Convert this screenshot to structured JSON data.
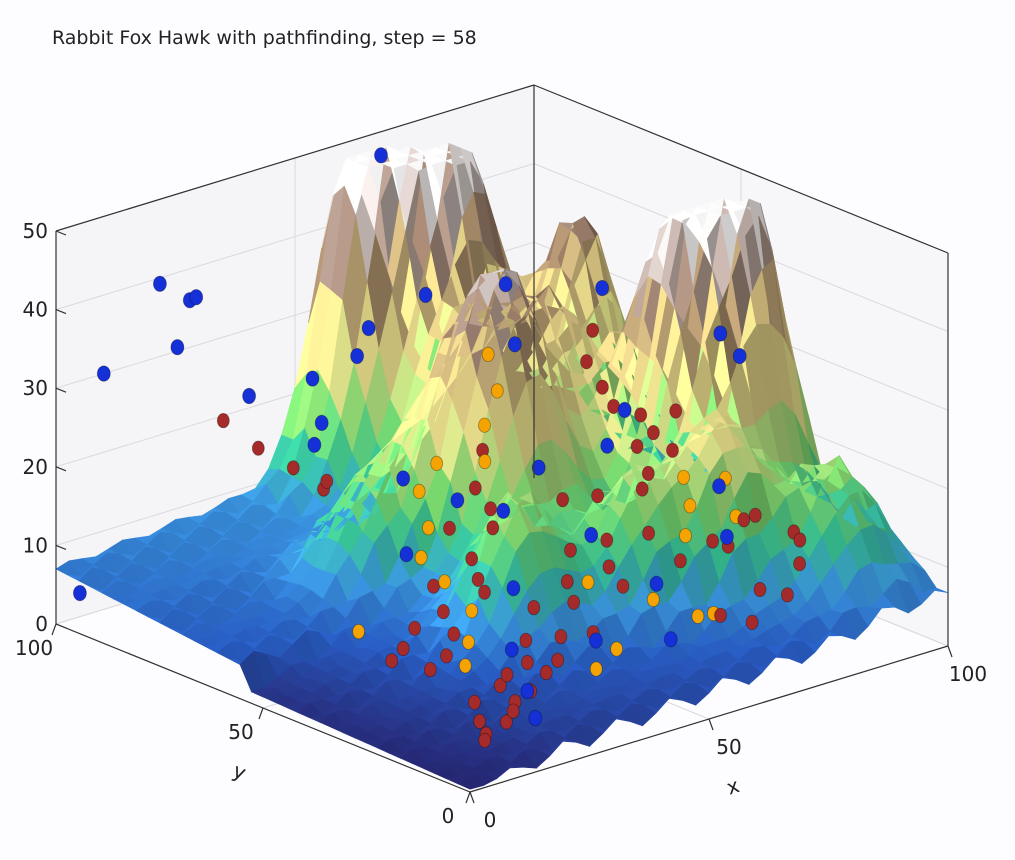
{
  "chart_data": {
    "type": "surface3d",
    "title": "Rabbit Fox Hawk with pathfinding, step = 58",
    "xlabel": "x",
    "ylabel": "y",
    "zlabel": "",
    "xlim": [
      0,
      100
    ],
    "ylim": [
      0,
      100
    ],
    "zlim": [
      0,
      50
    ],
    "xticks": [
      "0",
      "50",
      "100"
    ],
    "yticks": [
      "0",
      "50",
      "100"
    ],
    "zticks": [
      "0",
      "10",
      "20",
      "30",
      "40",
      "50"
    ],
    "colormap": "terrain",
    "grid": true,
    "surface_peaks": [
      {
        "x": 72,
        "y": 88,
        "z": 45
      },
      {
        "x": 60,
        "y": 95,
        "z": 45
      },
      {
        "x": 92,
        "y": 40,
        "z": 43
      },
      {
        "x": 80,
        "y": 45,
        "z": 34
      },
      {
        "x": 55,
        "y": 52,
        "z": 30
      },
      {
        "x": 88,
        "y": 75,
        "z": 31
      },
      {
        "x": 70,
        "y": 60,
        "z": 25
      },
      {
        "x": 62,
        "y": 72,
        "z": 22
      },
      {
        "x": 48,
        "y": 60,
        "z": 20
      },
      {
        "x": 40,
        "y": 35,
        "z": 18
      },
      {
        "x": 75,
        "y": 25,
        "z": 20
      },
      {
        "x": 60,
        "y": 30,
        "z": 16
      },
      {
        "x": 90,
        "y": 15,
        "z": 15
      },
      {
        "x": 35,
        "y": 65,
        "z": 12
      }
    ],
    "series": [
      {
        "name": "Rabbit",
        "color": "#a52a2a",
        "points": [
          [
            88,
            72,
            27
          ],
          [
            85,
            70,
            24
          ],
          [
            84,
            65,
            22
          ],
          [
            82,
            60,
            21
          ],
          [
            86,
            55,
            18
          ],
          [
            80,
            52,
            18
          ],
          [
            78,
            47,
            16
          ],
          [
            75,
            45,
            15
          ],
          [
            70,
            50,
            14
          ],
          [
            67,
            55,
            13
          ],
          [
            72,
            40,
            11
          ],
          [
            65,
            42,
            11
          ],
          [
            60,
            45,
            10
          ],
          [
            62,
            38,
            9
          ],
          [
            55,
            40,
            8
          ],
          [
            58,
            30,
            9
          ],
          [
            52,
            35,
            7
          ],
          [
            48,
            40,
            6
          ],
          [
            50,
            28,
            5
          ],
          [
            45,
            30,
            5
          ],
          [
            42,
            35,
            4
          ],
          [
            40,
            25,
            4
          ],
          [
            38,
            30,
            3
          ],
          [
            35,
            22,
            4
          ],
          [
            32,
            28,
            3
          ],
          [
            30,
            20,
            3
          ],
          [
            28,
            25,
            3
          ],
          [
            25,
            18,
            3
          ],
          [
            22,
            15,
            3
          ],
          [
            20,
            22,
            3
          ],
          [
            18,
            12,
            3
          ],
          [
            15,
            15,
            3
          ],
          [
            12,
            10,
            3
          ],
          [
            10,
            8,
            3
          ],
          [
            65,
            72,
            16
          ],
          [
            60,
            68,
            13
          ],
          [
            58,
            62,
            12
          ],
          [
            55,
            58,
            11
          ],
          [
            52,
            65,
            10
          ],
          [
            48,
            55,
            9
          ],
          [
            45,
            50,
            8
          ],
          [
            42,
            45,
            8
          ],
          [
            40,
            55,
            7
          ],
          [
            36,
            48,
            6
          ],
          [
            33,
            42,
            5
          ],
          [
            30,
            48,
            5
          ],
          [
            28,
            38,
            4
          ],
          [
            25,
            45,
            4
          ],
          [
            22,
            35,
            4
          ],
          [
            20,
            42,
            4
          ],
          [
            70,
            30,
            10
          ],
          [
            75,
            28,
            12
          ],
          [
            80,
            30,
            10
          ],
          [
            85,
            32,
            12
          ],
          [
            90,
            35,
            11
          ],
          [
            92,
            28,
            10
          ],
          [
            95,
            30,
            8
          ],
          [
            88,
            22,
            8
          ],
          [
            82,
            18,
            6
          ],
          [
            78,
            20,
            7
          ],
          [
            72,
            15,
            5
          ],
          [
            68,
            18,
            6
          ],
          [
            95,
            60,
            18
          ],
          [
            92,
            65,
            17
          ],
          [
            90,
            55,
            15
          ],
          [
            30,
            70,
            18
          ],
          [
            28,
            75,
            20
          ],
          [
            25,
            80,
            22
          ],
          [
            22,
            85,
            25
          ],
          [
            35,
            75,
            17
          ]
        ]
      },
      {
        "name": "Fox",
        "color": "#f4a300",
        "points": [
          [
            80,
            88,
            22
          ],
          [
            75,
            80,
            20
          ],
          [
            68,
            75,
            18
          ],
          [
            62,
            68,
            16
          ],
          [
            58,
            75,
            15
          ],
          [
            50,
            70,
            14
          ],
          [
            45,
            62,
            12
          ],
          [
            40,
            58,
            10
          ],
          [
            38,
            50,
            9
          ],
          [
            35,
            40,
            8
          ],
          [
            30,
            35,
            6
          ],
          [
            25,
            30,
            5
          ],
          [
            55,
            35,
            9
          ],
          [
            60,
            25,
            8
          ],
          [
            65,
            20,
            6
          ],
          [
            70,
            22,
            5
          ],
          [
            88,
            50,
            13
          ],
          [
            85,
            45,
            11
          ],
          [
            78,
            38,
            10
          ],
          [
            92,
            42,
            9
          ],
          [
            48,
            20,
            5
          ],
          [
            42,
            18,
            4
          ],
          [
            95,
            48,
            12
          ],
          [
            20,
            50,
            6
          ]
        ]
      },
      {
        "name": "Hawk",
        "color": "#1530d6",
        "points": [
          [
            68,
            100,
            47
          ],
          [
            100,
            55,
            28
          ],
          [
            98,
            48,
            27
          ],
          [
            90,
            72,
            32
          ],
          [
            75,
            78,
            34
          ],
          [
            70,
            70,
            29
          ],
          [
            60,
            80,
            35
          ],
          [
            55,
            88,
            30
          ],
          [
            50,
            85,
            28
          ],
          [
            45,
            90,
            25
          ],
          [
            40,
            82,
            22
          ],
          [
            35,
            78,
            21
          ],
          [
            30,
            88,
            26
          ],
          [
            25,
            95,
            38
          ],
          [
            20,
            98,
            40
          ],
          [
            28,
            100,
            36
          ],
          [
            15,
            88,
            35
          ],
          [
            10,
            100,
            30
          ],
          [
            5,
            100,
            3
          ],
          [
            38,
            60,
            20
          ],
          [
            45,
            55,
            17
          ],
          [
            52,
            52,
            15
          ],
          [
            62,
            55,
            18
          ],
          [
            72,
            50,
            20
          ],
          [
            80,
            55,
            22
          ],
          [
            85,
            38,
            15
          ],
          [
            78,
            28,
            12
          ],
          [
            60,
            40,
            13
          ],
          [
            42,
            38,
            10
          ],
          [
            48,
            25,
            5
          ],
          [
            33,
            28,
            6
          ],
          [
            25,
            15,
            5
          ],
          [
            18,
            5,
            5
          ],
          [
            55,
            15,
            6
          ],
          [
            65,
            30,
            8
          ],
          [
            30,
            50,
            14
          ]
        ]
      }
    ]
  }
}
